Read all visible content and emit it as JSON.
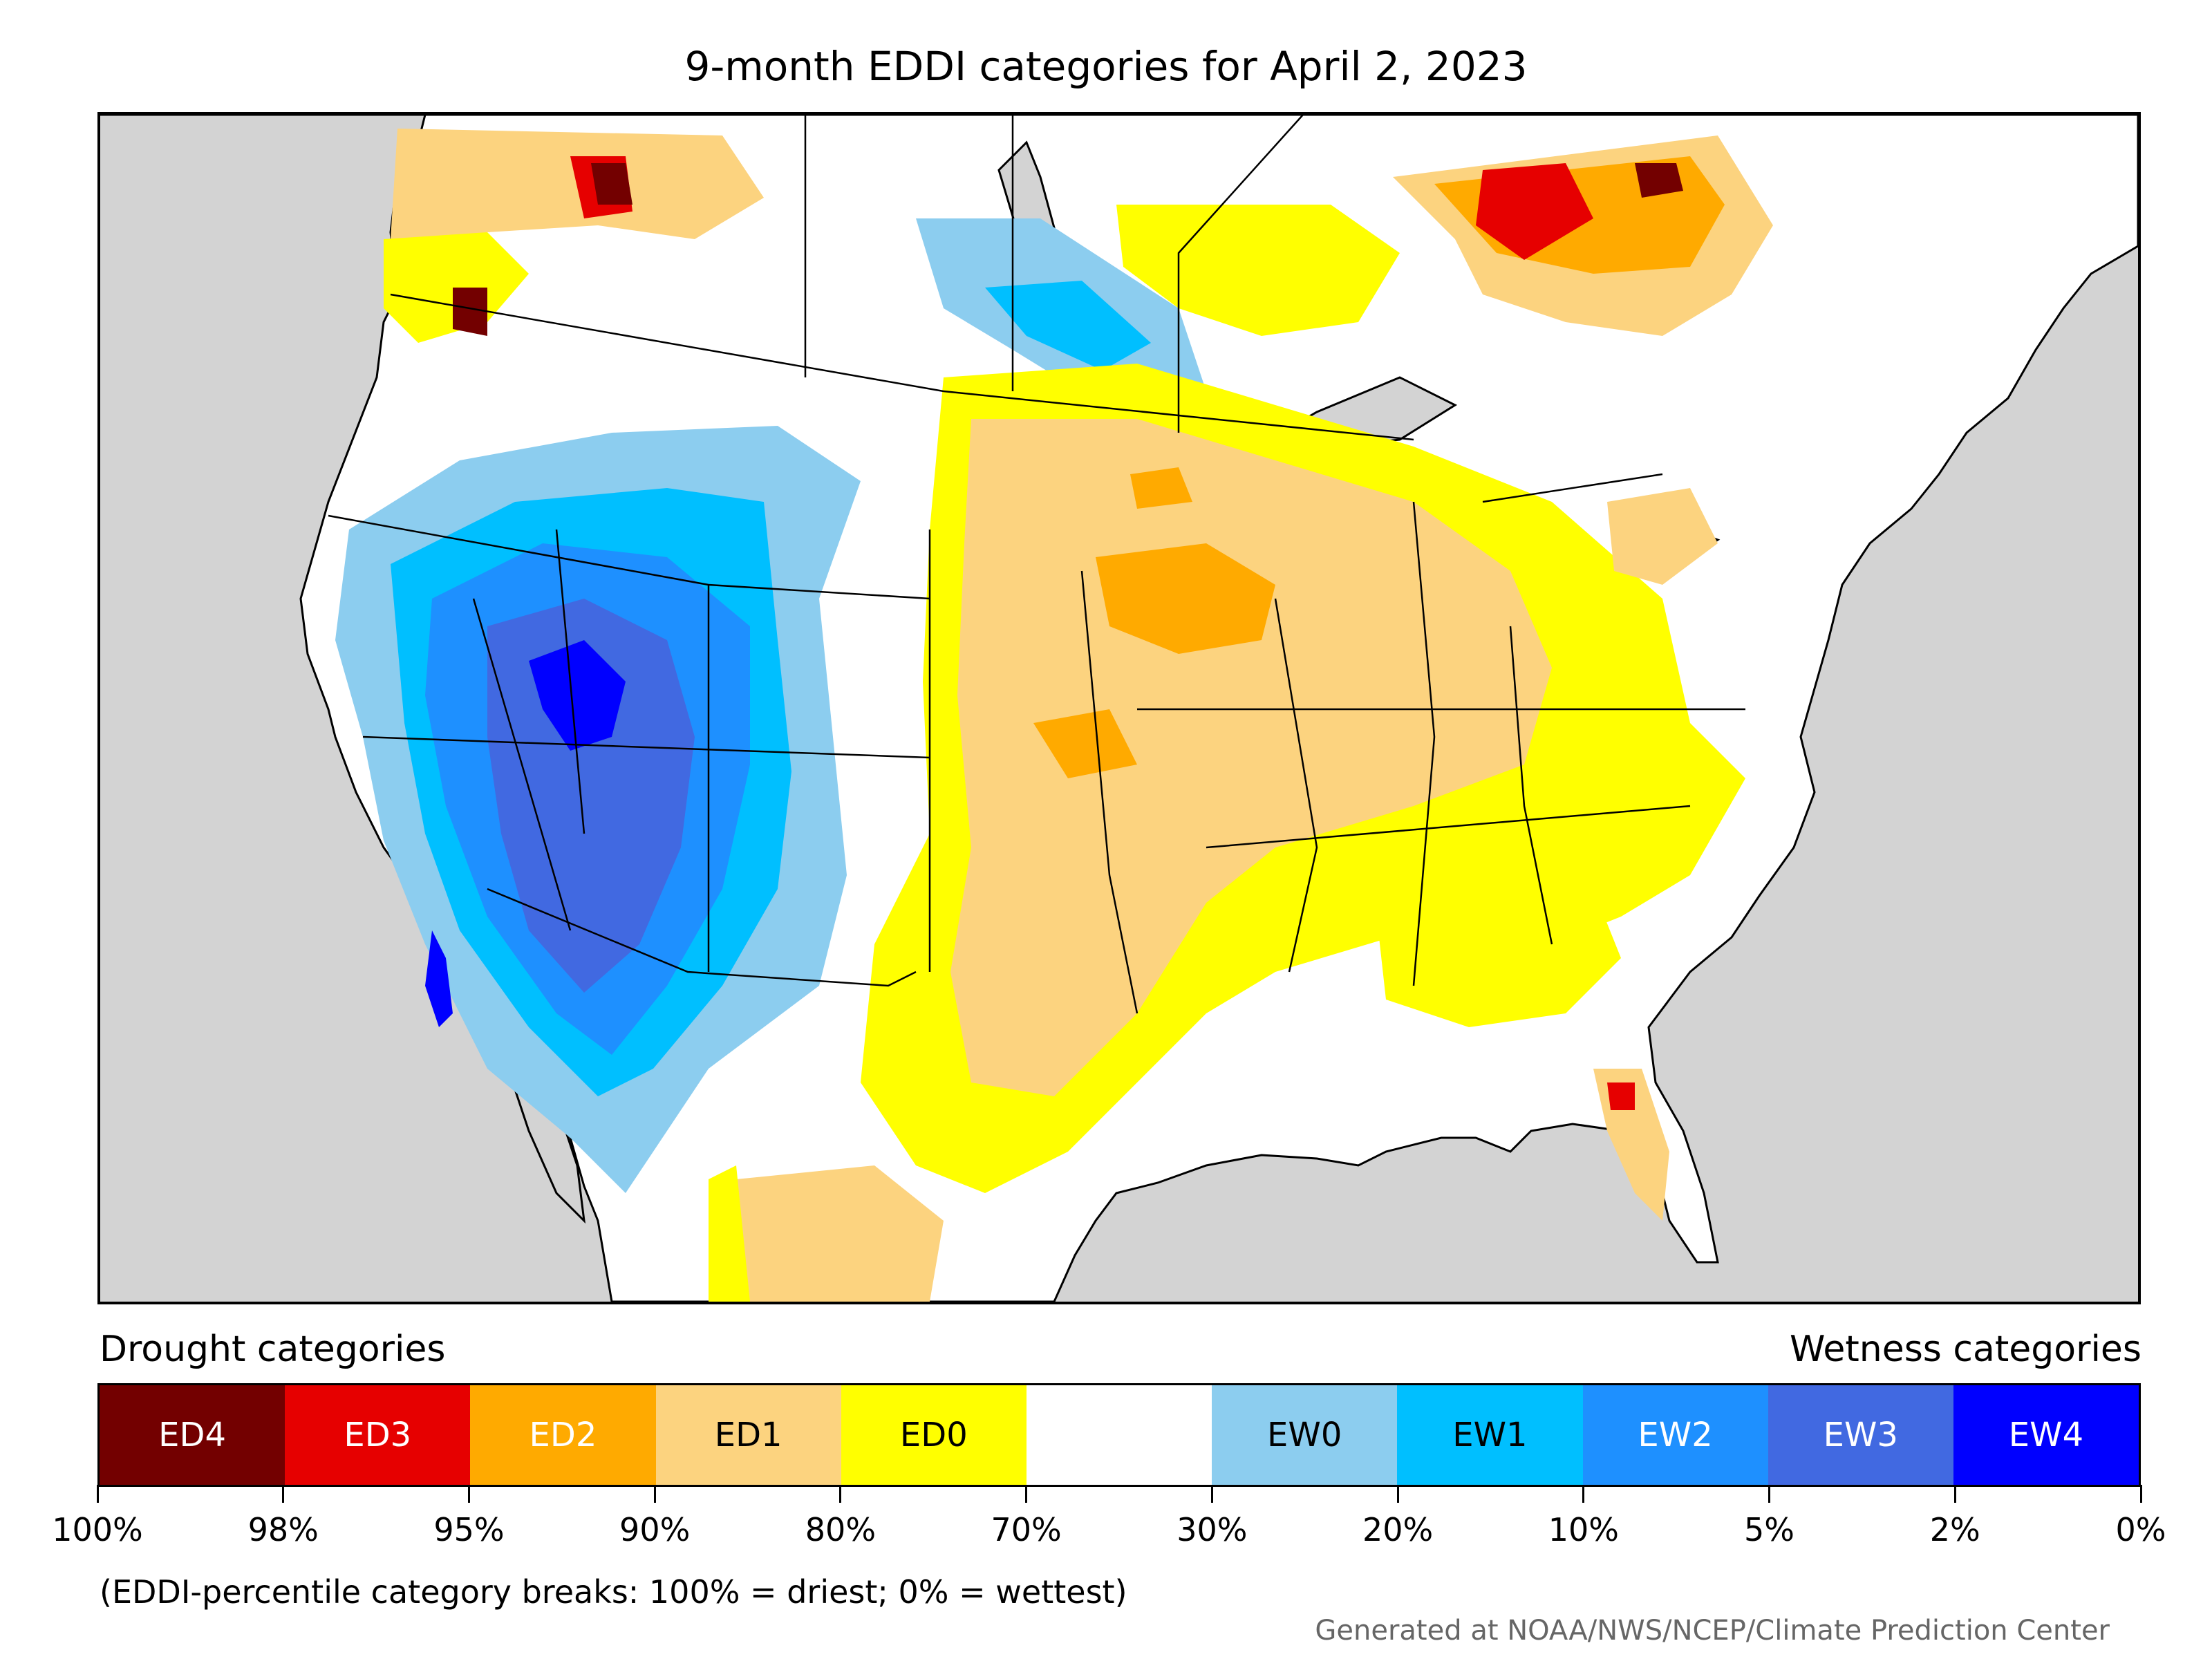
{
  "title": "9-month EDDI categories for April 2, 2023",
  "legend": {
    "drought_header": "Drought categories",
    "wetness_header": "Wetness categories",
    "categories": [
      {
        "label": "ED4",
        "color": "#730000",
        "text_color": "#ffffff"
      },
      {
        "label": "ED3",
        "color": "#e60000",
        "text_color": "#ffffff"
      },
      {
        "label": "ED2",
        "color": "#ffaa00",
        "text_color": "#ffffff"
      },
      {
        "label": "ED1",
        "color": "#fcd37f",
        "text_color": "#000000"
      },
      {
        "label": "ED0",
        "color": "#ffff00",
        "text_color": "#000000"
      },
      {
        "label": "",
        "color": "#ffffff",
        "text_color": "#000000"
      },
      {
        "label": "EW0",
        "color": "#8ccdef",
        "text_color": "#000000"
      },
      {
        "label": "EW1",
        "color": "#00bfff",
        "text_color": "#000000"
      },
      {
        "label": "EW2",
        "color": "#1e90ff",
        "text_color": "#ffffff"
      },
      {
        "label": "EW3",
        "color": "#4169e1",
        "text_color": "#ffffff"
      },
      {
        "label": "EW4",
        "color": "#0000ff",
        "text_color": "#ffffff"
      }
    ],
    "ticks": [
      "100%",
      "98%",
      "95%",
      "90%",
      "80%",
      "70%",
      "30%",
      "20%",
      "10%",
      "5%",
      "2%",
      "0%"
    ],
    "note": "(EDDI-percentile category breaks: 100% = driest; 0% = wettest)"
  },
  "credit": "Generated at NOAA/NWS/NCEP/Climate Prediction Center",
  "colors": {
    "ocean": "#d3d3d3",
    "land": "#ffffff",
    "border": "#000000"
  }
}
